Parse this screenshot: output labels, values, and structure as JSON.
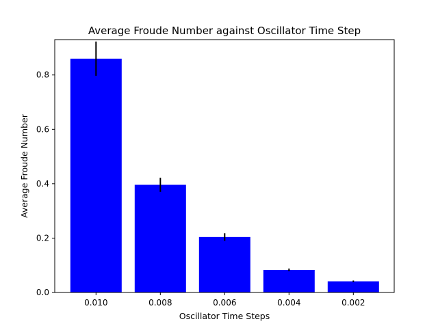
{
  "chart_data": {
    "type": "bar",
    "title": "Average Froude Number against Oscillator Time Step",
    "xlabel": "Oscillator Time Steps",
    "ylabel": "Average Froude Number",
    "categories": [
      "0.010",
      "0.008",
      "0.006",
      "0.004",
      "0.002"
    ],
    "values": [
      0.86,
      0.396,
      0.204,
      0.083,
      0.041
    ],
    "errors": [
      0.063,
      0.026,
      0.014,
      0.005,
      0.003
    ],
    "ylim": [
      0,
      0.93
    ],
    "yticks": [
      0.0,
      0.2,
      0.4,
      0.6,
      0.8
    ],
    "ytick_labels": [
      "0.0",
      "0.2",
      "0.4",
      "0.6",
      "0.8"
    ],
    "bar_color": "#0000ff",
    "error_color": "#000000",
    "grid": false,
    "legend": "none"
  }
}
